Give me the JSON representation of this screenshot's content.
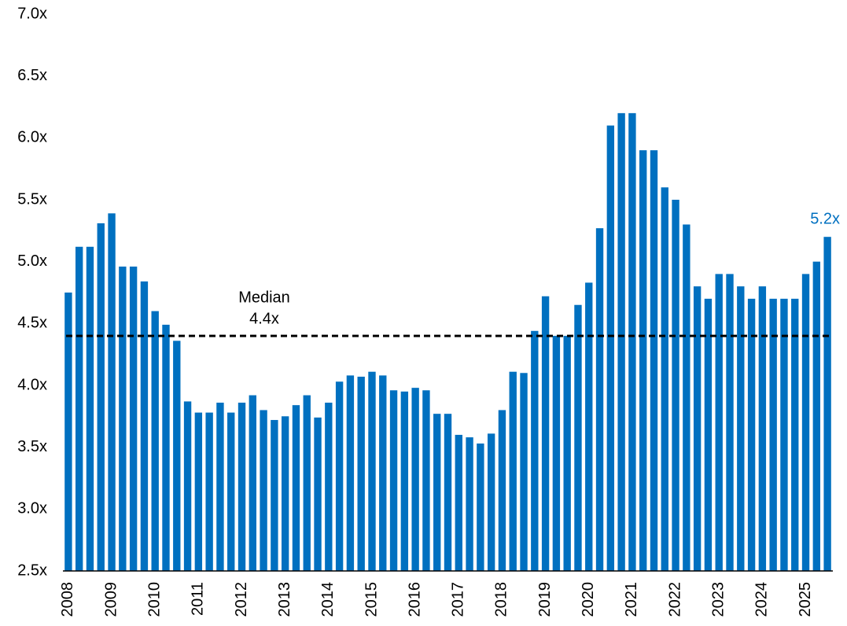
{
  "chart_data": {
    "type": "bar",
    "categories": [
      "2008",
      null,
      null,
      null,
      "2009",
      null,
      null,
      null,
      "2010",
      null,
      null,
      null,
      "2011",
      null,
      null,
      null,
      "2012",
      null,
      null,
      null,
      "2013",
      null,
      null,
      null,
      "2014",
      null,
      null,
      null,
      "2015",
      null,
      null,
      null,
      "2016",
      null,
      null,
      null,
      "2017",
      null,
      null,
      null,
      "2018",
      null,
      null,
      null,
      "2019",
      null,
      null,
      null,
      "2020",
      null,
      null,
      null,
      "2021",
      null,
      null,
      null,
      "2022",
      null,
      null,
      null,
      "2023",
      null,
      null,
      null,
      "2024",
      null,
      null,
      null,
      "2025",
      null,
      null
    ],
    "values": [
      4.75,
      5.12,
      5.12,
      5.31,
      5.39,
      4.96,
      4.96,
      4.84,
      4.6,
      4.49,
      4.36,
      3.87,
      3.78,
      3.78,
      3.86,
      3.78,
      3.86,
      3.92,
      3.8,
      3.72,
      3.75,
      3.84,
      3.92,
      3.74,
      3.86,
      4.03,
      4.08,
      4.07,
      4.11,
      4.08,
      3.96,
      3.95,
      3.98,
      3.96,
      3.77,
      3.77,
      3.6,
      3.58,
      3.53,
      3.61,
      3.8,
      4.11,
      4.1,
      4.44,
      4.72,
      4.4,
      4.4,
      4.65,
      4.83,
      5.27,
      6.1,
      6.2,
      6.2,
      5.9,
      5.9,
      5.6,
      5.5,
      5.3,
      4.8,
      4.7,
      4.9,
      4.9,
      4.8,
      4.7,
      4.8,
      4.7,
      4.7,
      4.7,
      4.9,
      5.0,
      5.2
    ],
    "value_labels": [
      null,
      null,
      null,
      null,
      null,
      null,
      null,
      null,
      null,
      null,
      null,
      null,
      null,
      null,
      null,
      null,
      null,
      null,
      null,
      null,
      null,
      null,
      null,
      null,
      null,
      null,
      null,
      null,
      null,
      null,
      null,
      null,
      null,
      null,
      null,
      null,
      null,
      null,
      null,
      null,
      null,
      null,
      null,
      null,
      null,
      null,
      null,
      null,
      null,
      null,
      null,
      null,
      null,
      null,
      null,
      null,
      null,
      null,
      null,
      null,
      null,
      null,
      null,
      null,
      null,
      null,
      null,
      null,
      null,
      null,
      "5.2x"
    ],
    "color": "#0070c0",
    "ylim": [
      2.5,
      7.0
    ],
    "yticks": [
      {
        "value": 2.5,
        "label": "2.5x"
      },
      {
        "value": 3.0,
        "label": "3.0x"
      },
      {
        "value": 3.5,
        "label": "3.5x"
      },
      {
        "value": 4.0,
        "label": "4.0x"
      },
      {
        "value": 4.5,
        "label": "4.5x"
      },
      {
        "value": 5.0,
        "label": "5.0x"
      },
      {
        "value": 5.5,
        "label": "5.5x"
      },
      {
        "value": 6.0,
        "label": "6.0x"
      },
      {
        "value": 6.5,
        "label": "6.5x"
      },
      {
        "value": 7.0,
        "label": "7.0x"
      }
    ],
    "grid": false,
    "median": {
      "label": "Median",
      "value_label": "4.4x",
      "value": 4.4
    }
  }
}
